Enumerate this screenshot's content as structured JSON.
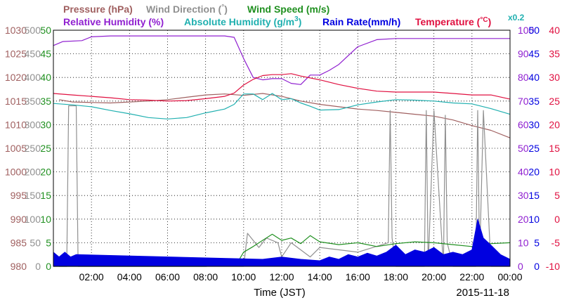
{
  "legend": {
    "pressure": "Pressure (hPa)",
    "wind_direction_a": "Wind Direction (",
    "wind_direction_deg": "°",
    "wind_direction_b": ")",
    "wind_speed": "Wind Speed (m/s)",
    "relative_humidity": "Relative Humidity (%)",
    "absolute_humidity_a": "Absolute Humidity (g/m",
    "absolute_humidity_sup": "3",
    "absolute_humidity_b": ")",
    "rain_rate": "Rain Rate(mm/h)",
    "temperature_a": "Temperature (",
    "temperature_deg": "°C",
    "temperature_b": ")",
    "rain_multiplier": "x0.2"
  },
  "chart_data": {
    "type": "line",
    "xlabel": "Time (JST)",
    "date": "2015-11-18",
    "x_ticks": [
      "02:00",
      "04:00",
      "06:00",
      "08:00",
      "10:00",
      "12:00",
      "14:00",
      "16:00",
      "18:00",
      "20:00",
      "22:00",
      "00:00"
    ],
    "xlim_hours": [
      0,
      24
    ],
    "axes": {
      "pressure": {
        "label": "hPa",
        "ticks": [
          "1030",
          "1025",
          "1020",
          "1015",
          "1010",
          "1005",
          "1000",
          "995",
          "990",
          "985",
          "980"
        ],
        "ylim": [
          980,
          1030
        ]
      },
      "wind_direction": {
        "ticks": [
          "500",
          "450",
          "400",
          "350",
          "300",
          "250",
          "200",
          "150",
          "100",
          "50",
          "0"
        ],
        "ylim": [
          0,
          500
        ]
      },
      "wind_speed": {
        "ticks": [
          "50",
          "45",
          "40",
          "35",
          "30",
          "25",
          "20",
          "15",
          "10",
          "5",
          "0"
        ],
        "ylim": [
          0,
          50
        ]
      },
      "humidity": {
        "ticks": [
          "100",
          "90",
          "80",
          "70",
          "60",
          "50",
          "40",
          "30",
          "20",
          "10",
          "0"
        ],
        "ylim": [
          0,
          100
        ]
      },
      "rain_rate": {
        "ticks": [
          "50",
          "45",
          "40",
          "35",
          "30",
          "25",
          "20",
          "15",
          "10",
          "5",
          "0"
        ],
        "ylim": [
          0,
          50
        ]
      },
      "temperature": {
        "ticks": [
          "40",
          "35",
          "30",
          "25",
          "20",
          "15",
          "10",
          "5",
          "0",
          "-5",
          "-10"
        ],
        "ylim": [
          -10,
          40
        ]
      }
    },
    "series": [
      {
        "name": "Pressure (hPa)",
        "color": "#a06060",
        "axis": "pressure",
        "x": [
          0.3,
          1,
          2,
          3,
          4,
          5,
          6,
          7,
          8,
          9,
          10,
          11,
          12,
          13,
          14,
          15,
          16,
          17,
          18,
          19,
          20,
          21,
          22,
          23,
          24
        ],
        "y": [
          1015.3,
          1014.8,
          1014.7,
          1014.6,
          1014.8,
          1015.0,
          1015.3,
          1015.8,
          1016.3,
          1016.5,
          1016.2,
          1016.6,
          1016.0,
          1015.0,
          1014.3,
          1013.8,
          1013.3,
          1013.0,
          1012.6,
          1012.2,
          1011.8,
          1011.0,
          1009.8,
          1008.8,
          1007.2
        ]
      },
      {
        "name": "Wind Direction",
        "color": "#909090",
        "axis": "wind_direction",
        "x": [
          0.3,
          0.7,
          0.8,
          1.2,
          1.3,
          2,
          4,
          6,
          8,
          10,
          10.2,
          10.8,
          11.2,
          11.8,
          12,
          12.5,
          13.5,
          14,
          16,
          17.6,
          17.7,
          17.8,
          18,
          19.5,
          19.6,
          19.7,
          20,
          20.5,
          20.6,
          20.7,
          21,
          22.2,
          22.3,
          22.4,
          22.6,
          23,
          23.5,
          24
        ],
        "y": [
          0,
          0,
          340,
          340,
          0,
          0,
          0,
          0,
          0,
          0,
          70,
          40,
          60,
          50,
          20,
          50,
          20,
          40,
          30,
          50,
          330,
          60,
          0,
          0,
          330,
          0,
          330,
          0,
          320,
          50,
          0,
          0,
          330,
          10,
          330,
          0,
          0,
          0
        ]
      },
      {
        "name": "Wind Speed (m/s)",
        "color": "#209020",
        "axis": "wind_speed",
        "x": [
          0,
          2,
          4,
          6,
          8,
          9.6,
          10,
          10.5,
          11,
          11.5,
          12,
          12.5,
          13,
          13.5,
          14,
          15,
          16,
          17,
          18,
          19,
          20,
          21,
          22,
          23,
          24
        ],
        "y": [
          0,
          0,
          0,
          0,
          0,
          0.3,
          3.0,
          4.2,
          5.5,
          6.8,
          5.5,
          6.0,
          4.8,
          6.5,
          5.2,
          4.6,
          5.0,
          4.2,
          4.8,
          5.2,
          5.0,
          4.6,
          4.2,
          4.8,
          5.0
        ]
      },
      {
        "name": "Relative Humidity (%)",
        "color": "#9020d0",
        "axis": "humidity",
        "x": [
          0,
          0.5,
          1.5,
          2,
          3,
          4,
          5,
          6,
          7,
          8,
          9,
          9.5,
          10,
          10.5,
          11,
          11.5,
          12,
          12.5,
          13,
          13.5,
          14,
          14.5,
          15,
          16,
          17,
          18,
          20,
          22,
          24
        ],
        "y": [
          93.5,
          95.2,
          95.6,
          97.2,
          97.6,
          97.6,
          97.6,
          97.6,
          97.6,
          97.6,
          97.6,
          97.0,
          88,
          80,
          79,
          79.5,
          79.5,
          77.5,
          77,
          81,
          81,
          83,
          85.5,
          93,
          96,
          96.5,
          96.5,
          96.5,
          96.5
        ]
      },
      {
        "name": "Absolute Humidity (g/m3)",
        "color": "#20b0b0",
        "axis": "wind_speed",
        "x": [
          0,
          1,
          2,
          3,
          4,
          5,
          6,
          7,
          8,
          9,
          9.5,
          10,
          10.5,
          11,
          11.5,
          12,
          12.5,
          13,
          13.5,
          14,
          15,
          16,
          17,
          18,
          19,
          20,
          21,
          22,
          23,
          24
        ],
        "y": [
          34.5,
          34.2,
          33.8,
          33.0,
          32.3,
          31.5,
          31.2,
          31.5,
          32.5,
          33.3,
          34.3,
          36.5,
          36.5,
          35.3,
          36.6,
          35.3,
          35.5,
          34.6,
          33.9,
          33.1,
          33.2,
          34.2,
          34.8,
          35.3,
          35.2,
          35.0,
          34.6,
          34.4,
          33.4,
          32.2
        ]
      },
      {
        "name": "Temperature (°C)",
        "color": "#e01040",
        "axis": "temperature",
        "x": [
          0,
          1,
          2,
          3,
          4,
          5,
          6,
          7,
          8,
          9,
          9.5,
          10,
          10.5,
          11,
          11.5,
          12,
          12.5,
          13,
          14,
          15,
          16,
          17,
          18,
          19,
          20,
          21,
          22,
          23,
          24
        ],
        "y": [
          26.6,
          26.3,
          26.0,
          25.7,
          25.3,
          25.2,
          25.0,
          25.1,
          25.5,
          26.0,
          26.7,
          28.4,
          29.6,
          30.4,
          30.6,
          30.6,
          30.8,
          30.3,
          29.5,
          28.5,
          27.7,
          27.1,
          26.9,
          26.9,
          26.9,
          26.6,
          26.3,
          26.3,
          25.4
        ]
      },
      {
        "name": "Rain Rate(mm/h)",
        "color": "#0000e0",
        "axis": "rain_rate",
        "multiplier": 0.2,
        "x": [
          0.0,
          0.3,
          0.6,
          0.9,
          1.2,
          11.0,
          12.0,
          13.0,
          14.0,
          14.5,
          15,
          15.5,
          16,
          16.5,
          17,
          17.5,
          18,
          18.5,
          19,
          19.5,
          20,
          20.5,
          21,
          21.5,
          22,
          22.3,
          22.6,
          23,
          23.5,
          24
        ],
        "y": [
          3.0,
          2.0,
          3.0,
          2.0,
          2.5,
          1.5,
          2.0,
          1.5,
          1.2,
          2.0,
          1.5,
          2.5,
          2.0,
          2.8,
          2.2,
          3.0,
          4.5,
          2.5,
          3.5,
          3.0,
          4.0,
          2.5,
          3.0,
          2.5,
          3.5,
          10.0,
          6.0,
          4.5,
          2.5,
          1.5
        ]
      }
    ]
  }
}
